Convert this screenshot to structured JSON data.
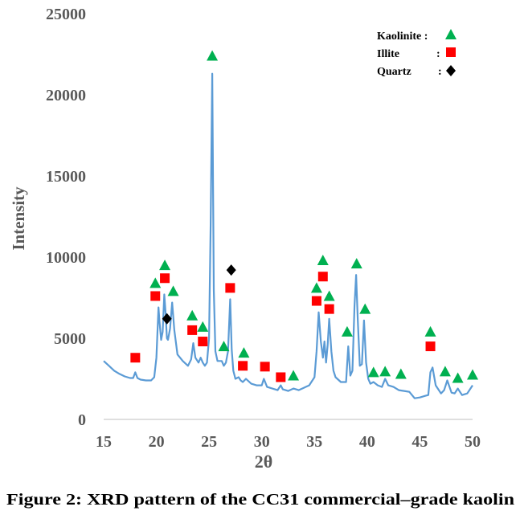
{
  "chart_data": {
    "type": "line",
    "title": "",
    "xlabel": "2θ",
    "ylabel": "Intensity",
    "xlim": [
      15,
      50
    ],
    "ylim": [
      0,
      25000
    ],
    "xticks": [
      "15",
      "20",
      "25",
      "30",
      "35",
      "40",
      "45",
      "50"
    ],
    "yticks": [
      "0",
      "5000",
      "10000",
      "15000",
      "20000",
      "25000"
    ],
    "grid": false,
    "series": [
      {
        "name": "CC31 XRD pattern",
        "color": "#5B9BD5",
        "x": [
          15.0,
          15.5,
          16.0,
          16.5,
          17.0,
          17.5,
          17.8,
          18.0,
          18.2,
          18.5,
          19.0,
          19.5,
          19.8,
          20.0,
          20.2,
          20.3,
          20.45,
          20.6,
          20.75,
          20.85,
          21.0,
          21.1,
          21.3,
          21.5,
          21.7,
          22.0,
          22.5,
          23.0,
          23.3,
          23.5,
          23.7,
          24.0,
          24.2,
          24.4,
          24.6,
          24.8,
          25.0,
          25.15,
          25.3,
          25.45,
          25.6,
          25.8,
          26.2,
          26.4,
          26.6,
          26.8,
          27.0,
          27.15,
          27.3,
          27.5,
          27.8,
          28.0,
          28.2,
          28.5,
          29.0,
          29.5,
          30.0,
          30.2,
          30.5,
          31.0,
          31.5,
          31.8,
          32.0,
          32.5,
          33.0,
          33.5,
          34.0,
          34.5,
          35.0,
          35.2,
          35.4,
          35.6,
          35.8,
          35.95,
          36.1,
          36.25,
          36.4,
          36.6,
          36.8,
          37.0,
          37.5,
          38.0,
          38.2,
          38.4,
          38.6,
          38.8,
          38.95,
          39.1,
          39.3,
          39.5,
          39.7,
          39.9,
          40.1,
          40.3,
          40.6,
          41.0,
          41.4,
          41.7,
          42.0,
          42.5,
          43.0,
          43.5,
          44.0,
          44.5,
          45.0,
          45.5,
          45.8,
          46.0,
          46.2,
          46.5,
          47.0,
          47.3,
          47.6,
          48.0,
          48.3,
          48.6,
          49.0,
          49.5,
          50.0
        ],
        "values": [
          3600,
          3300,
          3000,
          2800,
          2650,
          2550,
          2550,
          2900,
          2550,
          2450,
          2400,
          2400,
          2600,
          3800,
          6900,
          6000,
          4900,
          5400,
          7700,
          6800,
          5000,
          4900,
          5600,
          7200,
          5500,
          4000,
          3600,
          3300,
          3700,
          4700,
          3800,
          3500,
          3800,
          3500,
          3300,
          3500,
          5000,
          12000,
          21300,
          8000,
          4200,
          3600,
          3600,
          3300,
          3500,
          4200,
          7400,
          4300,
          3000,
          2500,
          2600,
          2400,
          2300,
          2500,
          2200,
          2100,
          2100,
          2500,
          2000,
          1900,
          1800,
          2100,
          1850,
          1750,
          1900,
          1800,
          1950,
          2100,
          2600,
          4200,
          6600,
          4800,
          3800,
          4800,
          3500,
          4600,
          6200,
          4200,
          3000,
          2600,
          2300,
          2300,
          4500,
          2700,
          3000,
          7000,
          8900,
          6200,
          3300,
          3400,
          6100,
          3500,
          2500,
          2200,
          2300,
          2100,
          2000,
          2500,
          2100,
          2000,
          1800,
          1750,
          1700,
          1300,
          1350,
          1450,
          1500,
          2900,
          3200,
          2100,
          1600,
          1800,
          2400,
          1650,
          1600,
          1900,
          1500,
          1600,
          2100
        ]
      }
    ],
    "markers": {
      "kaolinite": [
        [
          19.9,
          8400
        ],
        [
          20.8,
          9500
        ],
        [
          21.6,
          7900
        ],
        [
          23.4,
          6400
        ],
        [
          24.4,
          5700
        ],
        [
          25.3,
          22400
        ],
        [
          26.4,
          4500
        ],
        [
          28.3,
          4100
        ],
        [
          33.0,
          2700
        ],
        [
          35.2,
          8100
        ],
        [
          35.8,
          9800
        ],
        [
          36.4,
          7600
        ],
        [
          38.1,
          5400
        ],
        [
          39.0,
          9600
        ],
        [
          39.8,
          6800
        ],
        [
          40.6,
          2900
        ],
        [
          41.7,
          2950
        ],
        [
          43.2,
          2800
        ],
        [
          46.0,
          5400
        ],
        [
          47.4,
          2950
        ],
        [
          48.6,
          2550
        ],
        [
          50.0,
          2750
        ]
      ],
      "illite": [
        [
          18.0,
          3800
        ],
        [
          19.9,
          7600
        ],
        [
          20.8,
          8700
        ],
        [
          23.4,
          5500
        ],
        [
          24.4,
          4800
        ],
        [
          27.0,
          8100
        ],
        [
          28.2,
          3300
        ],
        [
          30.3,
          3250
        ],
        [
          31.8,
          2600
        ],
        [
          35.2,
          7300
        ],
        [
          35.8,
          8800
        ],
        [
          36.4,
          6800
        ],
        [
          46.0,
          4500
        ]
      ],
      "quartz": [
        [
          21.0,
          6200
        ],
        [
          27.1,
          9200
        ]
      ]
    },
    "legend": {
      "position": "top-right",
      "entries": [
        {
          "label": "Kaolinite :",
          "symbol": "triangle",
          "color": "#00B050"
        },
        {
          "label": "Illite",
          "sep": ":",
          "symbol": "square",
          "color": "#FF0000"
        },
        {
          "label": "Quartz",
          "sep": ":",
          "symbol": "diamond",
          "color": "#000000"
        }
      ]
    }
  },
  "caption": "Figure 2: XRD pattern of the CC31 commercial–grade kaolin"
}
